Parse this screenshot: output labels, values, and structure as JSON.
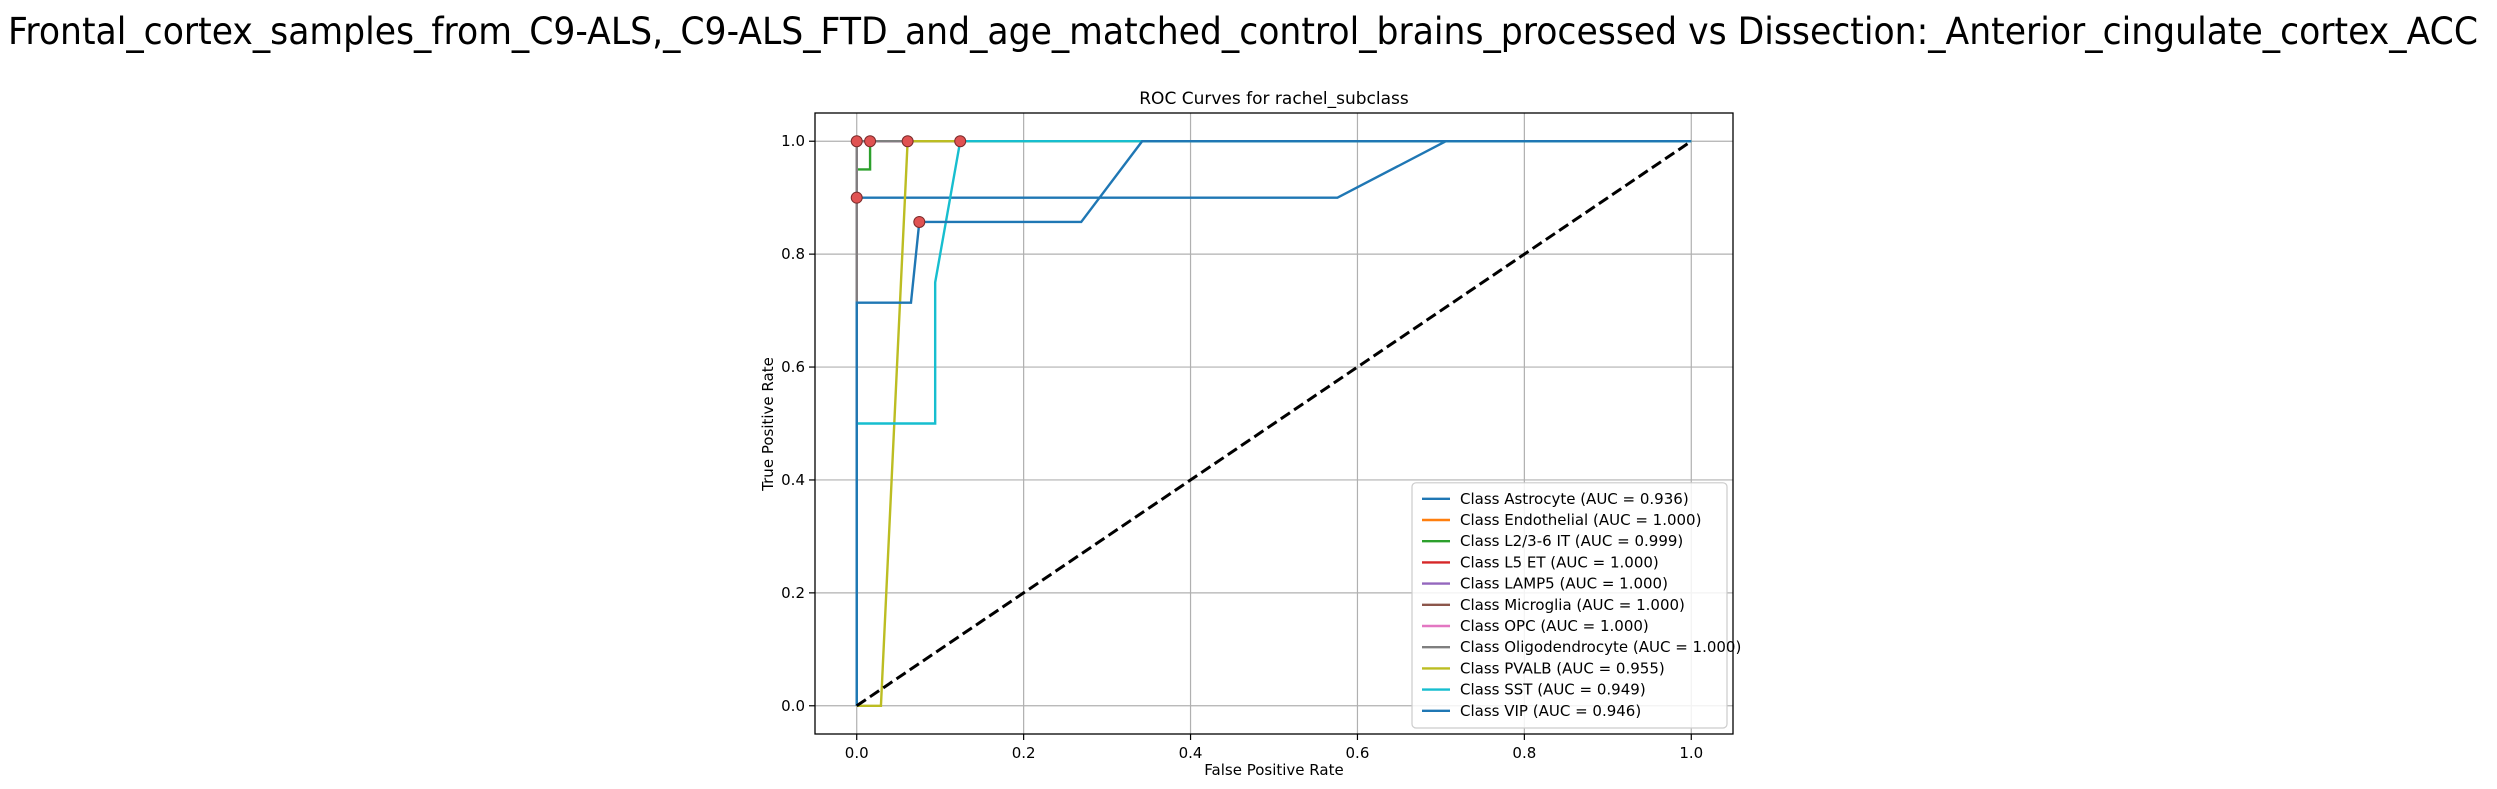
{
  "chart_data": {
    "type": "line",
    "suptitle": "Frontal_cortex_samples_from_C9-ALS,_C9-ALS_FTD_and_age_matched_control_brains_processed vs Dissection:_Anterior_cingulate_cortex_ACC",
    "title": "ROC Curves for rachel_subclass",
    "x_label": "False Positive Rate",
    "y_label": "True Positive Rate",
    "xlim": [
      -0.05,
      1.05
    ],
    "ylim": [
      -0.05,
      1.05
    ],
    "xticks": [
      {
        "value": 0,
        "label": "0.0"
      },
      {
        "value": 0.2,
        "label": "0.2"
      },
      {
        "value": 0.4,
        "label": "0.4"
      },
      {
        "value": 0.6,
        "label": "0.6"
      },
      {
        "value": 0.8,
        "label": "0.8"
      },
      {
        "value": 1,
        "label": "1.0"
      }
    ],
    "yticks": [
      {
        "value": 0,
        "label": "0.0"
      },
      {
        "value": 0.2,
        "label": "0.2"
      },
      {
        "value": 0.4,
        "label": "0.4"
      },
      {
        "value": 0.6,
        "label": "0.6"
      },
      {
        "value": 0.8,
        "label": "0.8"
      },
      {
        "value": 1,
        "label": "1.0"
      }
    ],
    "grid": true,
    "legend_position": "lower right",
    "series": [
      {
        "name": "Class Astrocyte (AUC = 0.936)",
        "color": "#1f77b4",
        "x": [
          0,
          0,
          0.576,
          0.706,
          1
        ],
        "y": [
          0,
          0.9,
          0.9,
          1,
          1
        ]
      },
      {
        "name": "Class Endothelial (AUC = 1.000)",
        "color": "#ff7f0e",
        "x": [
          0,
          0,
          1
        ],
        "y": [
          0,
          1,
          1
        ]
      },
      {
        "name": "Class L2/3-6 IT (AUC = 0.999)",
        "color": "#2ca02c",
        "x": [
          0,
          0,
          0.016,
          0.016,
          1
        ],
        "y": [
          0,
          0.95,
          0.95,
          1,
          1
        ]
      },
      {
        "name": "Class L5 ET (AUC = 1.000)",
        "color": "#d62728",
        "x": [
          0,
          0,
          1
        ],
        "y": [
          0,
          1,
          1
        ]
      },
      {
        "name": "Class LAMP5 (AUC = 1.000)",
        "color": "#9467bd",
        "x": [
          0,
          0,
          1
        ],
        "y": [
          0,
          1,
          1
        ]
      },
      {
        "name": "Class Microglia (AUC = 1.000)",
        "color": "#8c564b",
        "x": [
          0,
          0,
          1
        ],
        "y": [
          0,
          1,
          1
        ]
      },
      {
        "name": "Class OPC (AUC = 1.000)",
        "color": "#e377c2",
        "x": [
          0,
          0,
          1
        ],
        "y": [
          0,
          1,
          1
        ]
      },
      {
        "name": "Class Oligodendrocyte (AUC = 1.000)",
        "color": "#7f7f7f",
        "x": [
          0,
          0,
          1
        ],
        "y": [
          0,
          1,
          1
        ]
      },
      {
        "name": "Class PVALB (AUC = 0.955)",
        "color": "#bcbd22",
        "x": [
          0,
          0.029,
          0.061,
          1
        ],
        "y": [
          0,
          0,
          1,
          1
        ]
      },
      {
        "name": "Class SST (AUC = 0.949)",
        "color": "#17becf",
        "x": [
          0,
          0,
          0.094,
          0.094,
          0.124,
          1
        ],
        "y": [
          0,
          0.5,
          0.5,
          0.75,
          1,
          1
        ]
      },
      {
        "name": "Class VIP (AUC = 0.946)",
        "color": "#1f77b4",
        "x": [
          0,
          0,
          0.065,
          0.075,
          0.269,
          0.342,
          1
        ],
        "y": [
          0,
          0.714,
          0.714,
          0.857,
          0.857,
          1,
          1
        ]
      }
    ],
    "threshold_points": {
      "color": "#e05252",
      "x": [
        0,
        0,
        0.016,
        0.061,
        0.124,
        0.075
      ],
      "y": [
        1,
        0.9,
        1,
        1,
        1,
        0.857
      ]
    },
    "reference_line": {
      "color": "#000000",
      "x": [
        0,
        1
      ],
      "y": [
        0,
        1
      ]
    }
  }
}
